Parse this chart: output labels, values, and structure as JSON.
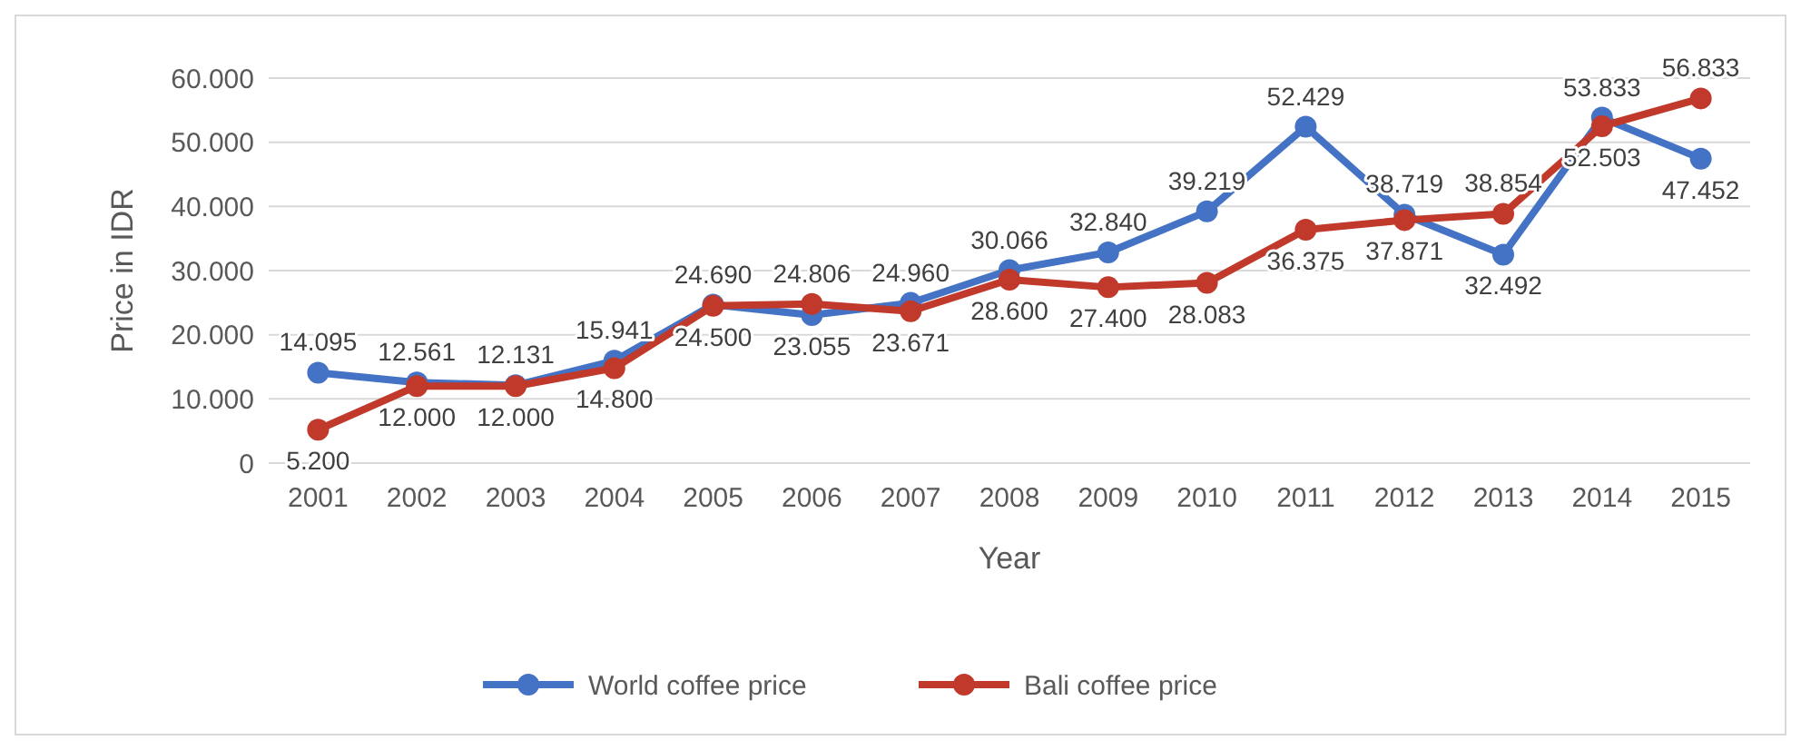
{
  "chart_data": {
    "type": "line",
    "xlabel": "Year",
    "ylabel": "Price in IDR",
    "categories": [
      "2001",
      "2002",
      "2003",
      "2004",
      "2005",
      "2006",
      "2007",
      "2008",
      "2009",
      "2010",
      "2011",
      "2012",
      "2013",
      "2014",
      "2015"
    ],
    "series": [
      {
        "name": "World coffee price",
        "color": "#4472c4",
        "values": [
          14095,
          12561,
          12131,
          15941,
          24690,
          23055,
          24960,
          30066,
          32840,
          39219,
          52429,
          38719,
          32492,
          53833,
          47452
        ],
        "value_labels": [
          "14.095",
          "12.561",
          "12.131",
          "15.941",
          "24.690",
          "23.055",
          "24.960",
          "30.066",
          "32.840",
          "39.219",
          "52.429",
          "38.719",
          "32.492",
          "53.833",
          "47.452"
        ]
      },
      {
        "name": "Bali coffee price",
        "color": "#c0392b",
        "values": [
          5200,
          12000,
          12000,
          14800,
          24500,
          24806,
          23671,
          28600,
          27400,
          28083,
          36375,
          37871,
          38854,
          52503,
          56833
        ],
        "value_labels": [
          "5.200",
          "12.000",
          "12.000",
          "14.800",
          "24.500",
          "24.806",
          "23.671",
          "28.600",
          "27.400",
          "28.083",
          "36.375",
          "37.871",
          "38.854",
          "52.503",
          "56.833"
        ]
      }
    ],
    "ylim": [
      0,
      60000
    ],
    "yticks": [
      {
        "value": 0,
        "label": "0"
      },
      {
        "value": 10000,
        "label": "10.000"
      },
      {
        "value": 20000,
        "label": "20.000"
      },
      {
        "value": 30000,
        "label": "30.000"
      },
      {
        "value": 40000,
        "label": "40.000"
      },
      {
        "value": 50000,
        "label": "50.000"
      },
      {
        "value": 60000,
        "label": "60.000"
      }
    ],
    "grid": "y",
    "legend": "bottom",
    "marker": "circle",
    "line_style": "solid"
  }
}
